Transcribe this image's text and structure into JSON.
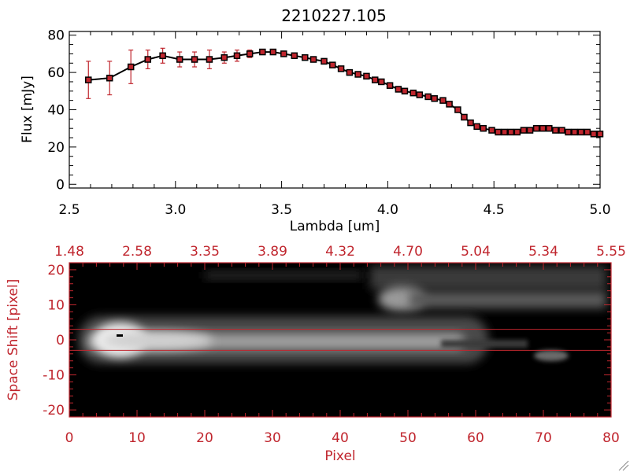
{
  "chart_data": [
    {
      "type": "line",
      "title": "2210227.105",
      "xlabel": "Lambda [um]",
      "ylabel": "Flux [mJy]",
      "xlim": [
        2.5,
        5.0
      ],
      "ylim": [
        -2,
        82
      ],
      "xticks": [
        "2.5",
        "3.0",
        "3.5",
        "4.0",
        "4.5",
        "5.0"
      ],
      "yticks": [
        "0",
        "20",
        "40",
        "60",
        "80"
      ],
      "series": [
        {
          "name": "flux",
          "x": [
            2.59,
            2.69,
            2.79,
            2.87,
            2.94,
            3.02,
            3.09,
            3.16,
            3.23,
            3.29,
            3.35,
            3.41,
            3.46,
            3.51,
            3.56,
            3.61,
            3.65,
            3.7,
            3.74,
            3.78,
            3.82,
            3.86,
            3.9,
            3.94,
            3.97,
            4.01,
            4.05,
            4.08,
            4.12,
            4.15,
            4.19,
            4.22,
            4.26,
            4.29,
            4.33,
            4.36,
            4.39,
            4.42,
            4.45,
            4.49,
            4.52,
            4.55,
            4.58,
            4.61,
            4.64,
            4.67,
            4.7,
            4.73,
            4.76,
            4.79,
            4.82,
            4.85,
            4.88,
            4.91,
            4.94,
            4.97,
            5.0
          ],
          "y": [
            56,
            57,
            63,
            67,
            69,
            67,
            67,
            67,
            68,
            69,
            70,
            71,
            71,
            70,
            69,
            68,
            67,
            66,
            64,
            62,
            60,
            59,
            58,
            56,
            55,
            53,
            51,
            50,
            49,
            48,
            47,
            46,
            45,
            43,
            40,
            36,
            33,
            31,
            30,
            29,
            28,
            28,
            28,
            28,
            29,
            29,
            30,
            30,
            30,
            29,
            29,
            28,
            28,
            28,
            28,
            27,
            27
          ],
          "yerr": [
            10,
            9,
            9,
            5,
            4,
            4,
            4,
            5,
            3,
            3,
            2,
            1,
            1,
            1,
            1,
            1,
            1,
            1,
            1,
            1,
            1,
            1,
            1,
            1,
            1,
            1,
            1,
            1,
            1,
            1,
            1,
            1,
            1,
            1,
            1,
            1,
            1,
            1,
            1,
            1,
            1,
            1,
            1,
            1,
            1,
            1,
            1,
            1,
            1,
            1,
            1,
            1,
            1,
            1,
            1,
            1,
            1
          ]
        }
      ]
    },
    {
      "type": "heatmap",
      "xlabel": "Pixel",
      "ylabel": "Space Shift [pixel]",
      "xlim": [
        0,
        80
      ],
      "ylim": [
        -22,
        22
      ],
      "xticks": [
        "0",
        "10",
        "20",
        "30",
        "40",
        "50",
        "60",
        "70",
        "80"
      ],
      "yticks": [
        "-20",
        "-10",
        "0",
        "10",
        "20"
      ],
      "top_xticks": [
        "1.48",
        "2.58",
        "3.35",
        "3.89",
        "4.32",
        "4.70",
        "5.04",
        "5.34",
        "5.55"
      ],
      "extraction_lines": [
        3,
        -3
      ],
      "features": [
        {
          "name": "main-trace",
          "x": [
            4,
            64
          ],
          "y": 0,
          "peak_x": 8
        },
        {
          "name": "secondary-blob",
          "x": [
            45,
            80
          ],
          "y": 11
        },
        {
          "name": "faint-blob",
          "x": 71,
          "y": -4
        }
      ]
    }
  ],
  "colors": {
    "axis": "#000000",
    "line": "#000000",
    "marker": "#c0262e",
    "errorbar": "#c0262e",
    "image_axis": "#c0262e",
    "image_background": "#000000"
  }
}
